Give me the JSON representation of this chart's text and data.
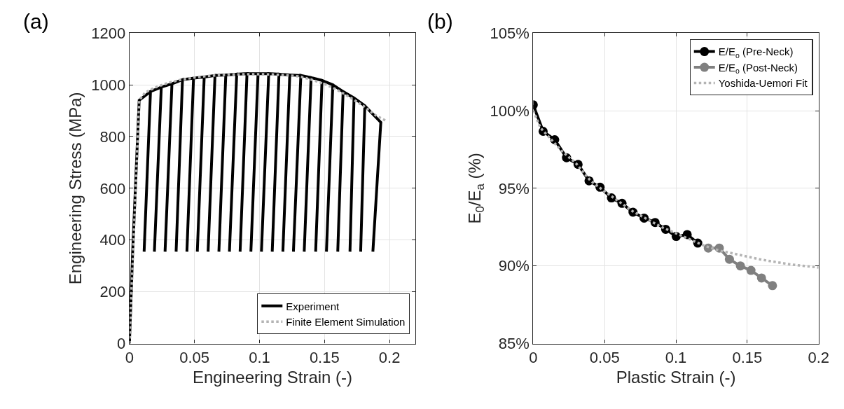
{
  "chart_data": [
    {
      "type": "line",
      "title": "(a)",
      "xlabel": "Engineering Strain (-)",
      "ylabel": "Engineering Stress (MPa)",
      "xlim": [
        0,
        0.22
      ],
      "xticks": [
        0,
        0.05,
        0.1,
        0.15,
        0.2
      ],
      "ylim": [
        0,
        1200
      ],
      "yticks": [
        0,
        200,
        400,
        600,
        800,
        1000,
        1200
      ],
      "grid": true,
      "legend": "bottom right",
      "series": [
        {
          "name": "Experiment",
          "color": "#000000",
          "line_style": "solid",
          "marker": "none",
          "x": [
            0,
            0.0025,
            0.0075,
            0.0162,
            0.0113,
            0.0162,
            0.0245,
            0.0192,
            0.0245,
            0.0327,
            0.0274,
            0.0327,
            0.0408,
            0.0359,
            0.0408,
            0.0493,
            0.0442,
            0.0493,
            0.0575,
            0.0522,
            0.0575,
            0.0658,
            0.0605,
            0.0658,
            0.0741,
            0.0688,
            0.0741,
            0.0825,
            0.0769,
            0.0825,
            0.0904,
            0.0851,
            0.0904,
            0.0989,
            0.0934,
            0.0989,
            0.1071,
            0.1015,
            0.1071,
            0.115,
            0.1098,
            0.115,
            0.1233,
            0.118,
            0.1233,
            0.1318,
            0.1261,
            0.1318,
            0.1397,
            0.1344,
            0.1397,
            0.1481,
            0.1432,
            0.1481,
            0.1564,
            0.1515,
            0.1564,
            0.1643,
            0.1602,
            0.1643,
            0.1727,
            0.1696,
            0.1727,
            0.181,
            0.1778,
            0.181,
            0.1933,
            0.1872
          ],
          "values": [
            0,
            355,
            940,
            974,
            355,
            974,
            991,
            355,
            991,
            1004,
            355,
            1004,
            1020,
            355,
            1020,
            1026,
            355,
            1026,
            1030,
            355,
            1030,
            1036,
            355,
            1036,
            1038,
            355,
            1038,
            1041,
            355,
            1041,
            1043,
            355,
            1043,
            1043,
            355,
            1043,
            1043,
            355,
            1043,
            1041,
            355,
            1041,
            1038,
            355,
            1038,
            1036,
            355,
            1036,
            1028,
            355,
            1028,
            1017,
            355,
            1017,
            1000,
            355,
            1000,
            974,
            355,
            974,
            949,
            355,
            949,
            919,
            355,
            919,
            855,
            355
          ]
        },
        {
          "name": "Finite Element Simulation",
          "color": "#b4b4b4",
          "line_style": "dotted",
          "marker": "none",
          "x": [
            0,
            0.0075,
            0.012,
            0.02,
            0.03,
            0.04,
            0.05,
            0.06,
            0.07,
            0.08,
            0.09,
            0.1,
            0.11,
            0.12,
            0.13,
            0.14,
            0.15,
            0.16,
            0.17,
            0.18,
            0.19,
            0.1977
          ],
          "values": [
            0,
            940,
            970,
            990,
            1008,
            1020,
            1028,
            1034,
            1037,
            1040,
            1041,
            1041,
            1040,
            1037,
            1033,
            1020,
            1003,
            980,
            950,
            918,
            880,
            860
          ]
        }
      ]
    },
    {
      "type": "line",
      "title": "(b)",
      "xlabel": "Plastic Strain (-)",
      "ylabel": "E$_{0}$/E$_{a}$ (%)",
      "xlim": [
        0,
        0.2
      ],
      "xticks": [
        0,
        0.05,
        0.1,
        0.15,
        0.2
      ],
      "ylim": [
        85,
        105
      ],
      "yticks": [
        {
          "value": 85,
          "label": "85%"
        },
        {
          "value": 90,
          "label": "90%"
        },
        {
          "value": 95,
          "label": "95%"
        },
        {
          "value": 100,
          "label": "100%"
        },
        {
          "value": 105,
          "label": "105%"
        }
      ],
      "grid": true,
      "legend": "top right",
      "series": [
        {
          "name": "E/E$_{o}$ (Pre-Neck)",
          "color": "#000000",
          "line_style": "solid",
          "marker": "circle",
          "x": [
            0,
            0.0069,
            0.015,
            0.0233,
            0.0314,
            0.0391,
            0.0468,
            0.0548,
            0.0622,
            0.0699,
            0.0777,
            0.0854,
            0.0928,
            0.1002,
            0.1079,
            0.1153
          ],
          "values": [
            100.37,
            98.67,
            98.13,
            96.97,
            96.54,
            95.48,
            95.07,
            94.38,
            94.03,
            93.46,
            93.08,
            92.8,
            92.36,
            91.9,
            92.02,
            91.47
          ]
        },
        {
          "name": "E/E$_{o}$ (Post-Neck)",
          "color": "#808080",
          "line_style": "solid",
          "marker": "circle",
          "x": [
            0.1227,
            0.1304,
            0.1375,
            0.1452,
            0.1526,
            0.16,
            0.1677
          ],
          "values": [
            91.15,
            91.15,
            90.43,
            90.0,
            89.71,
            89.22,
            88.73
          ]
        },
        {
          "name": "Yoshida-Uemori Fit",
          "color": "#b4b4b4",
          "line_style": "dotted",
          "marker": "none",
          "x": [
            0,
            0.005,
            0.01,
            0.02,
            0.03,
            0.04,
            0.05,
            0.06,
            0.07,
            0.08,
            0.09,
            0.1,
            0.11,
            0.12,
            0.13,
            0.14,
            0.15,
            0.16,
            0.17,
            0.18,
            0.19,
            0.2
          ],
          "values": [
            100,
            98.9,
            98.4,
            97.4,
            96.6,
            95.5,
            94.8,
            94.15,
            93.5,
            93.0,
            92.5,
            92.1,
            91.7,
            91.3,
            91.0,
            90.8,
            90.6,
            90.4,
            90.25,
            90.1,
            90.0,
            89.9
          ]
        }
      ]
    }
  ]
}
